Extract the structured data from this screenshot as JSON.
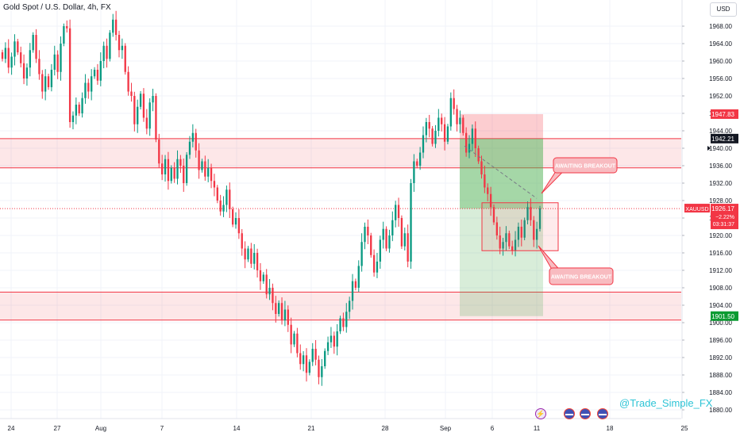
{
  "header": {
    "title": "Gold Spot / U.S. Dollar, 4h, FX",
    "currency": "USD"
  },
  "watermark": "@Trade_Simple_FX",
  "colors": {
    "up": "#089981",
    "down": "#f23645",
    "zone_fill": "#f23645",
    "target_fill": "#4caf50",
    "stop_fill": "#f23645",
    "grid": "#f0f3fa"
  },
  "chart_data": {
    "type": "candlestick",
    "symbol": "XAUUSD",
    "timeframe": "4h",
    "ylim": [
      1878,
      1974
    ],
    "y_ticks": [
      1880,
      1884,
      1888,
      1892,
      1896,
      1900,
      1904,
      1908,
      1912,
      1916,
      1920,
      1924,
      1928,
      1932,
      1936,
      1940,
      1944,
      1948,
      1952,
      1956,
      1960,
      1964,
      1968
    ],
    "x_tick_labels": [
      "24",
      "27",
      "Aug",
      "7",
      "14",
      "21",
      "28",
      "Sep",
      "6",
      "11",
      "18",
      "25"
    ],
    "price_tags": [
      {
        "price": 1947.83,
        "label": "1947.83",
        "style": "stop"
      },
      {
        "price": 1942.21,
        "label": "1942.21",
        "style": "dark"
      },
      {
        "price": 1926.17,
        "label": "1926.17",
        "style": "current",
        "symbol": "XAUUSD",
        "change": "−2.22%",
        "countdown": "03:31:37"
      },
      {
        "price": 1901.5,
        "label": "1901.50",
        "style": "target"
      }
    ],
    "cursor_price": "1940.00",
    "support_zones": [
      {
        "from": 1935.5,
        "to": 1942.2
      },
      {
        "from": 1900.6,
        "to": 1907.0
      }
    ],
    "position": {
      "entry": 1942.2,
      "stop": 1947.83,
      "target": 1901.5
    },
    "wedge_box": {
      "from": 1916.5,
      "to": 1927.5
    },
    "trendline": {
      "from": 1940.5,
      "to": 1928.5
    },
    "current_price": 1926.17,
    "annotations": [
      "AWAITING BREAKOUT",
      "AWAITING BREAKOUT"
    ],
    "candles": {
      "start_open": 1962.0,
      "closes": [
        1960.5,
        1963.0,
        1958.5,
        1961.0,
        1964.5,
        1962.0,
        1959.5,
        1956.0,
        1958.5,
        1962.5,
        1966.0,
        1960.5,
        1957.0,
        1953.0,
        1956.5,
        1954.0,
        1958.0,
        1961.5,
        1957.5,
        1964.0,
        1968.0,
        1967.5,
        1946.0,
        1947.5,
        1950.0,
        1948.0,
        1951.5,
        1955.0,
        1953.0,
        1956.5,
        1958.0,
        1955.5,
        1960.0,
        1963.5,
        1960.5,
        1966.5,
        1969.5,
        1966.0,
        1962.5,
        1963.5,
        1957.5,
        1953.0,
        1952.0,
        1945.5,
        1949.5,
        1952.5,
        1947.0,
        1944.5,
        1950.5,
        1952.0,
        1942.0,
        1936.5,
        1934.0,
        1937.5,
        1932.5,
        1935.5,
        1933.0,
        1937.5,
        1936.0,
        1932.0,
        1938.5,
        1941.5,
        1943.5,
        1939.5,
        1935.0,
        1937.0,
        1933.5,
        1935.5,
        1932.5,
        1931.0,
        1928.0,
        1925.5,
        1927.0,
        1930.5,
        1926.0,
        1922.5,
        1924.0,
        1920.5,
        1917.0,
        1914.5,
        1917.0,
        1913.5,
        1916.0,
        1912.0,
        1909.5,
        1911.0,
        1906.5,
        1908.0,
        1904.5,
        1902.0,
        1904.5,
        1900.5,
        1903.0,
        1899.5,
        1895.0,
        1897.5,
        1893.0,
        1890.5,
        1892.5,
        1888.5,
        1891.0,
        1894.0,
        1891.5,
        1887.5,
        1890.0,
        1893.5,
        1895.5,
        1897.0,
        1894.5,
        1898.0,
        1901.0,
        1899.0,
        1902.5,
        1905.0,
        1909.5,
        1908.0,
        1913.0,
        1918.5,
        1922.0,
        1920.0,
        1915.5,
        1911.5,
        1914.0,
        1919.0,
        1921.5,
        1917.0,
        1920.0,
        1923.5,
        1927.0,
        1924.0,
        1917.5,
        1920.5,
        1914.0,
        1932.0,
        1937.0,
        1936.0,
        1939.0,
        1943.0,
        1946.0,
        1944.5,
        1941.0,
        1944.0,
        1947.0,
        1945.5,
        1941.5,
        1945.0,
        1951.5,
        1949.0,
        1945.5,
        1947.0,
        1943.5,
        1939.0,
        1941.0,
        1944.5,
        1940.0,
        1937.0,
        1934.0,
        1931.0,
        1929.5,
        1926.5,
        1923.0,
        1920.0,
        1917.0,
        1918.5,
        1920.5,
        1917.5,
        1916.5,
        1919.0,
        1922.0,
        1919.5,
        1923.5,
        1926.5,
        1923.5,
        1919.0,
        1921.5,
        1926.17
      ]
    }
  }
}
